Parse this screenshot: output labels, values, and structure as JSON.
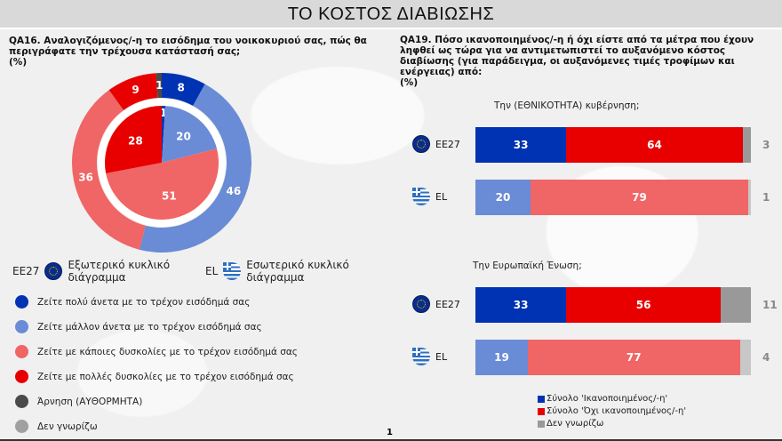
{
  "title": "ΤΟ ΚΟΣΤΟΣ ΔΙΑΒΙΩΣΗΣ",
  "page_number": "1",
  "colors": {
    "very_comfortable": "#0033b4",
    "fairly_comfortable": "#6a8bd6",
    "some_difficulties": "#f06565",
    "great_difficulties": "#e80000",
    "refusal": "#4a4a4a",
    "dont_know": "#a0a0a0"
  },
  "chart_data": [
    {
      "type": "pie",
      "variant": "nested-donut",
      "title": "QA16. Αναλογιζόμενος/-η το εισόδημα του νοικοκυριού σας, πώς θα περιγράφατε την τρέχουσα κατάστασή σας;",
      "unit": "(%)",
      "categories": [
        "Ζείτε πολύ άνετα με το τρέχον εισόδημά σας",
        "Ζείτε μάλλον άνετα με το τρέχον εισόδημά σας",
        "Ζείτε με κάποιες δυσκολίες με το τρέχον εισόδημά σας",
        "Ζείτε με πολλές δυσκολίες με το τρέχον εισόδημά σας",
        "Άρνηση (ΑΥΘΟΡΜΗΤΑ)",
        "Δεν γνωρίζω"
      ],
      "series": [
        {
          "name": "EE27",
          "ring": "Εξωτερικό κυκλικό διάγραμμα",
          "values": [
            8,
            46,
            36,
            9,
            1,
            0
          ]
        },
        {
          "name": "EL",
          "ring": "Εσωτερικό κυκλικό διάγραμμα",
          "values": [
            1,
            20,
            51,
            28,
            0,
            0
          ]
        }
      ]
    },
    {
      "type": "bar",
      "variant": "stacked-horizontal",
      "title": "QA19. Πόσο ικανοποιημένος/-η ή όχι είστε από τα μέτρα που έχουν ληφθεί ως τώρα για να αντιμετωπιστεί το αυξανόμενο κόστος διαβίωσης (για παράδειγμα, οι αυξανόμενες τιμές τροφίμων και ενέργειας) από:",
      "unit": "(%)",
      "legend": [
        "Σύνολο 'Ικανοποιημένος/-η'",
        "Σύνολο 'Όχι ικανοποιημένος/-η'",
        "Δεν γνωρίζω"
      ],
      "groups": [
        {
          "label": "Την (ΕΘΝΙΚΟΤΗΤΑ) κυβέρνηση;",
          "rows": [
            {
              "name": "EE27",
              "values": [
                33,
                64,
                3
              ]
            },
            {
              "name": "EL",
              "values": [
                20,
                79,
                1
              ]
            }
          ]
        },
        {
          "label": "Την Ευρωπαϊκή Ένωση;",
          "rows": [
            {
              "name": "EE27",
              "values": [
                33,
                56,
                11
              ]
            },
            {
              "name": "EL",
              "values": [
                19,
                77,
                4
              ]
            }
          ]
        }
      ]
    }
  ]
}
